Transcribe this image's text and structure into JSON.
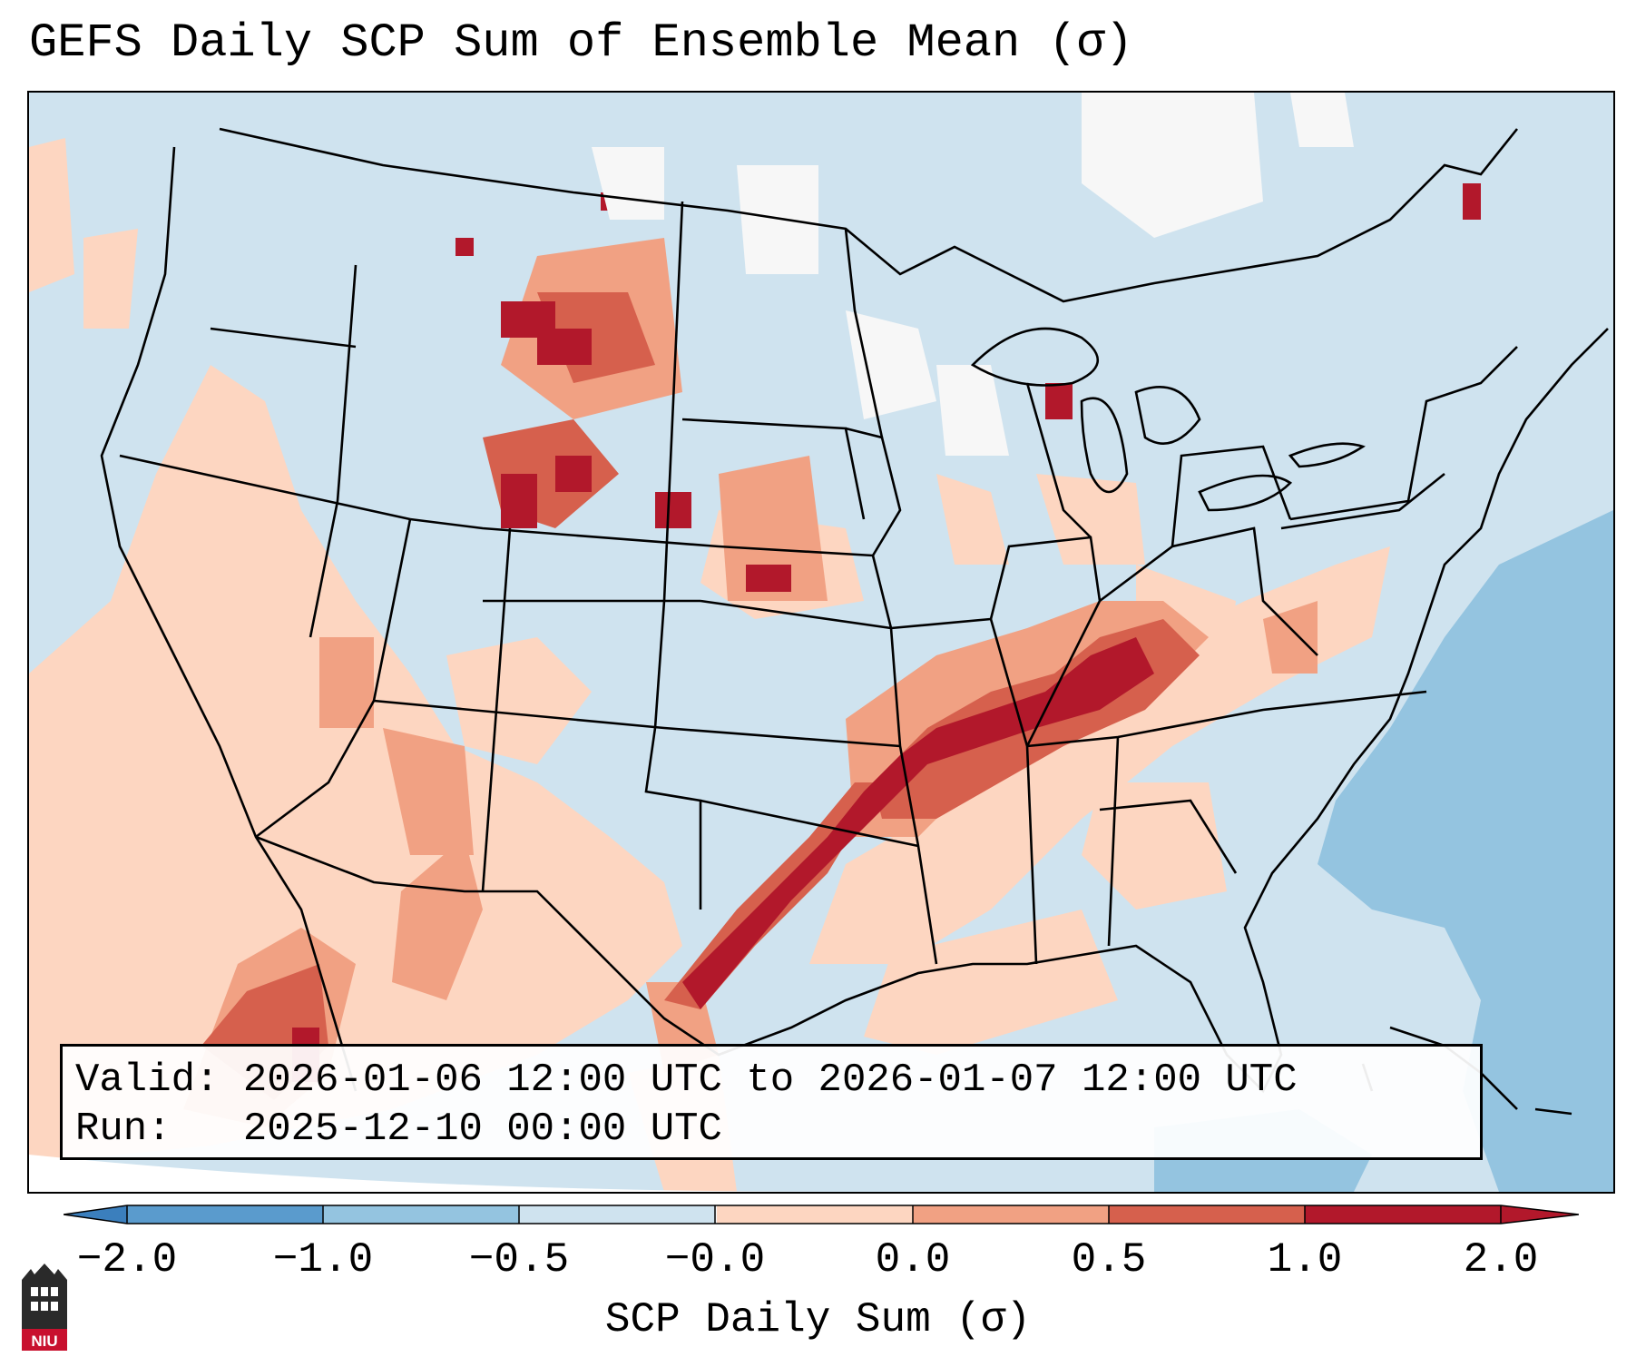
{
  "title": "GEFS Daily SCP Sum of Ensemble Mean (σ)",
  "info_box": {
    "valid_line": "Valid: 2026-01-06 12:00 UTC to 2026-01-07 12:00 UTC",
    "run_line": "Run:   2025-12-10 00:00 UTC"
  },
  "colorbar": {
    "label": "SCP Daily Sum (σ)",
    "ticks": [
      "−2.0",
      "−1.0",
      "−0.5",
      "−0.0",
      "0.0",
      "0.5",
      "1.0",
      "2.0"
    ],
    "bins": [
      {
        "range": "< -2.0",
        "color": "#3b7fbd"
      },
      {
        "range": "-2.0 to -1.0",
        "color": "#5a9bcd"
      },
      {
        "range": "-1.0 to -0.5",
        "color": "#94c4e0"
      },
      {
        "range": "-0.5 to -0.0",
        "color": "#cfe3ef"
      },
      {
        "range": "-0.0 to 0.0",
        "color": "#f7f7f7"
      },
      {
        "range": "0.0 to 0.5",
        "color": "#fdd6c1"
      },
      {
        "range": "0.5 to 1.0",
        "color": "#f1a183"
      },
      {
        "range": "1.0 to 2.0",
        "color": "#d6604d"
      },
      {
        "range": "> 2.0",
        "color": "#b2182b"
      }
    ]
  },
  "logo": {
    "text": "NIU",
    "color": "#c8102e"
  },
  "map": {
    "projection": "Lambert Conformal",
    "region": "CONUS",
    "background_color": "#cfe3ef",
    "features": [
      "state borders",
      "coastlines",
      "country borders",
      "Great Lakes"
    ],
    "highlight": "SCP maximum along a swath from south Texas through Arkansas, western Tennessee and Kentucky"
  }
}
